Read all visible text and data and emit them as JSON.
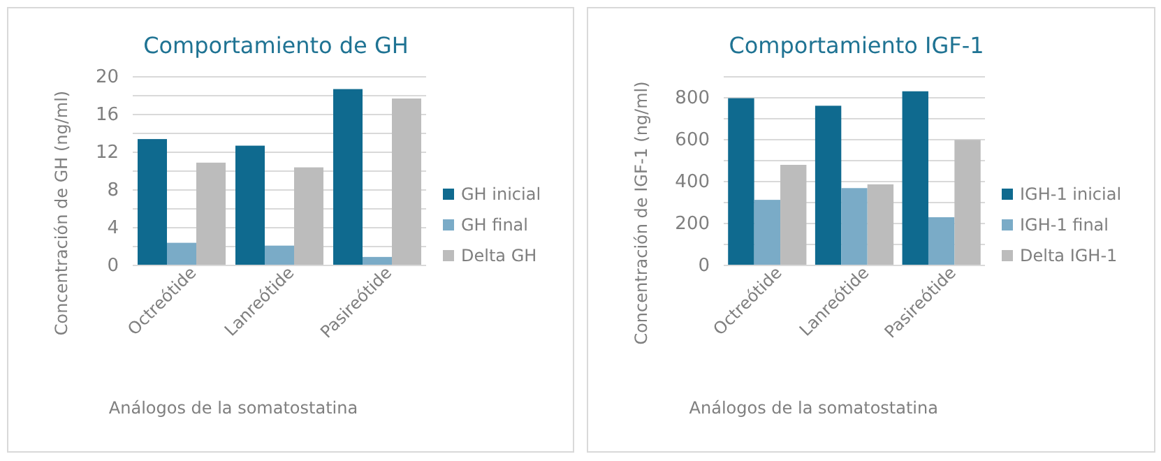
{
  "chart_data": [
    {
      "type": "bar",
      "title": "Comportamiento de GH",
      "xlabel": "Análogos de la somatostatina",
      "ylabel": "Concentración de GH (ng/ml)",
      "categories": [
        "Octreótide",
        "Lanreótide",
        "Pasireótide"
      ],
      "series": [
        {
          "name": "GH inicial",
          "color": "#0f6a8f",
          "values": [
            13.4,
            12.7,
            18.7
          ]
        },
        {
          "name": "GH final",
          "color": "#7aabc7",
          "values": [
            2.4,
            2.1,
            0.9
          ]
        },
        {
          "name": "Delta GH",
          "color": "#bcbcbc",
          "values": [
            10.9,
            10.4,
            17.7
          ]
        }
      ],
      "ylim": [
        0,
        20
      ],
      "yticks": [
        0,
        {
          "value": 2,
          "label": null
        },
        4,
        {
          "value": 6,
          "label": null
        },
        8,
        {
          "value": 10,
          "label": null
        },
        12,
        {
          "value": 14,
          "label": null
        },
        16,
        {
          "value": 18,
          "label": null
        },
        20
      ],
      "grid": "y",
      "legend": "right"
    },
    {
      "type": "bar",
      "title": "Comportamiento IGF-1",
      "xlabel": "Análogos de la somatostatina",
      "ylabel": "Concentración de IGF-1 (ng/ml)",
      "categories": [
        "Octreótide",
        "Lanreótide",
        "Pasireótide"
      ],
      "series": [
        {
          "name": "IGH-1 inicial",
          "color": "#0f6a8f",
          "values": [
            798,
            762,
            831
          ]
        },
        {
          "name": "IGH-1 final",
          "color": "#7aabc7",
          "values": [
            313,
            369,
            230
          ]
        },
        {
          "name": "Delta IGH-1",
          "color": "#bcbcbc",
          "values": [
            480,
            387,
            599
          ]
        }
      ],
      "ylim": [
        0,
        900
      ],
      "yticks": [
        0,
        {
          "value": 100,
          "label": null
        },
        200,
        {
          "value": 300,
          "label": null
        },
        400,
        {
          "value": 500,
          "label": null
        },
        600,
        {
          "value": 700,
          "label": null
        },
        800,
        {
          "value": 900,
          "label": null
        }
      ],
      "grid": "y",
      "legend": "right"
    }
  ]
}
